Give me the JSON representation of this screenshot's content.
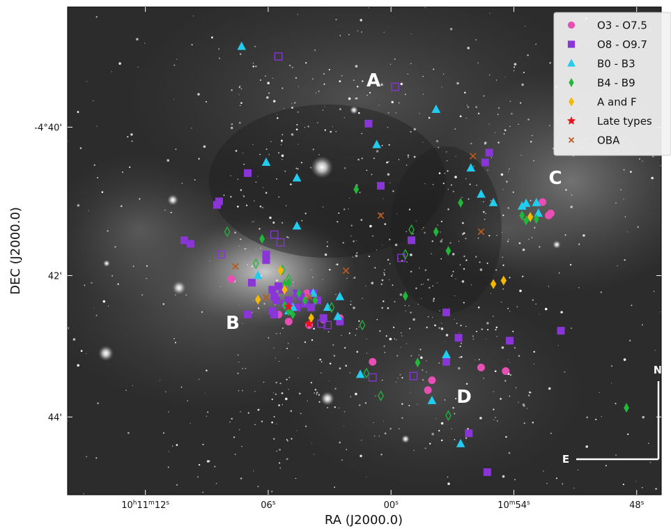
{
  "figure": {
    "xlabel": "RA (J2000.0)",
    "ylabel": "DEC (J2000.0)",
    "ra_ticks": [
      {
        "label": "10h11m12s"
      },
      {
        "label": "06s"
      },
      {
        "label": "00s"
      },
      {
        "label": "10m54s"
      },
      {
        "label": "48s"
      }
    ],
    "dec_ticks": [
      {
        "label": "-4°40'"
      },
      {
        "label": "42'"
      },
      {
        "label": "44'"
      }
    ],
    "regions": [
      "A",
      "B",
      "C",
      "D"
    ],
    "compass": {
      "north": "N",
      "east": "E"
    },
    "legend": [
      {
        "key": "o3",
        "label": "O3 - O7.5",
        "marker": "circle",
        "color": "#e84fb5"
      },
      {
        "key": "o8",
        "label": "O8 - O9.7",
        "marker": "square",
        "color": "#8a35d8"
      },
      {
        "key": "b0",
        "label": "B0 - B3",
        "marker": "triangle",
        "color": "#22ccee"
      },
      {
        "key": "b4",
        "label": "B4 - B9",
        "marker": "diamond-thin",
        "color": "#22b63a"
      },
      {
        "key": "af",
        "label": "A and F",
        "marker": "diamond",
        "color": "#f5b800"
      },
      {
        "key": "late",
        "label": "Late types",
        "marker": "star",
        "color": "#e8141c"
      },
      {
        "key": "oba",
        "label": "OBA",
        "marker": "x",
        "color": "#b85a1c"
      }
    ]
  },
  "chart_data": {
    "type": "scatter",
    "xlabel": "RA (J2000.0)",
    "ylabel": "DEC (J2000.0)",
    "x_axis": "RA seconds past 10h10m",
    "y_axis": "Dec arcminutes below -4°",
    "xlim": [
      75.8,
      46.8
    ],
    "ylim": [
      45.1,
      38.2
    ],
    "series": [
      {
        "name": "O3 - O7.5",
        "marker": "circle",
        "color": "#e84fb5",
        "filled": true,
        "points": [
          [
            67.8,
            42.05
          ],
          [
            64.0,
            42.7
          ],
          [
            65.5,
            42.55
          ],
          [
            65.0,
            42.65
          ],
          [
            64.1,
            42.25
          ],
          [
            64.2,
            42.3
          ],
          [
            63.3,
            42.62
          ],
          [
            62.5,
            42.6
          ],
          [
            60.9,
            43.22
          ],
          [
            58.2,
            43.62
          ],
          [
            58.0,
            43.48
          ],
          [
            55.6,
            43.3
          ],
          [
            54.4,
            43.35
          ],
          [
            52.6,
            40.96
          ],
          [
            52.2,
            41.12
          ],
          [
            52.3,
            41.15
          ]
        ]
      },
      {
        "name": "O8 - O9.7",
        "marker": "square",
        "color": "#8a35d8",
        "filled": true,
        "points": [
          [
            69.8,
            41.55
          ],
          [
            70.1,
            41.5
          ],
          [
            68.4,
            40.95
          ],
          [
            68.5,
            41.0
          ],
          [
            67.0,
            40.55
          ],
          [
            66.8,
            42.1
          ],
          [
            66.1,
            41.7
          ],
          [
            66.1,
            41.78
          ],
          [
            65.8,
            42.2
          ],
          [
            65.7,
            42.3
          ],
          [
            65.6,
            42.35
          ],
          [
            65.8,
            42.5
          ],
          [
            65.7,
            42.55
          ],
          [
            65.5,
            42.15
          ],
          [
            65.3,
            42.2
          ],
          [
            65.2,
            42.4
          ],
          [
            65.0,
            42.35
          ],
          [
            65.0,
            42.42
          ],
          [
            64.6,
            42.45
          ],
          [
            64.6,
            42.25
          ],
          [
            64.4,
            42.3
          ],
          [
            64.2,
            42.4
          ],
          [
            63.9,
            42.45
          ],
          [
            63.8,
            42.25
          ],
          [
            63.6,
            42.35
          ],
          [
            63.3,
            42.6
          ],
          [
            62.5,
            42.65
          ],
          [
            67.0,
            42.55
          ],
          [
            61.1,
            39.85
          ],
          [
            60.5,
            40.73
          ],
          [
            59.0,
            41.5
          ],
          [
            57.3,
            42.52
          ],
          [
            57.3,
            43.22
          ],
          [
            56.7,
            42.88
          ],
          [
            55.4,
            40.4
          ],
          [
            55.2,
            40.26
          ],
          [
            56.2,
            44.23
          ],
          [
            55.3,
            44.78
          ],
          [
            54.2,
            42.92
          ],
          [
            51.7,
            42.78
          ]
        ]
      },
      {
        "name": "B0 - B3",
        "marker": "triangle",
        "color": "#22ccee",
        "filled": true,
        "points": [
          [
            67.3,
            38.76
          ],
          [
            57.8,
            39.65
          ],
          [
            60.7,
            40.15
          ],
          [
            66.1,
            40.4
          ],
          [
            64.6,
            40.62
          ],
          [
            64.6,
            41.3
          ],
          [
            66.5,
            42.0
          ],
          [
            63.1,
            42.45
          ],
          [
            62.6,
            42.58
          ],
          [
            62.5,
            42.3
          ],
          [
            61.5,
            43.4
          ],
          [
            58.0,
            43.77
          ],
          [
            57.3,
            43.12
          ],
          [
            56.6,
            44.38
          ],
          [
            56.1,
            40.48
          ],
          [
            55.6,
            40.85
          ],
          [
            55.0,
            40.97
          ],
          [
            53.6,
            41.02
          ],
          [
            53.4,
            40.98
          ],
          [
            52.9,
            40.97
          ],
          [
            52.8,
            41.12
          ],
          [
            63.8,
            42.25
          ],
          [
            65.0,
            42.5
          ],
          [
            64.8,
            42.45
          ]
        ]
      },
      {
        "name": "B4 - B9",
        "marker": "diamond",
        "color": "#22b63a",
        "filled": true,
        "points": [
          [
            66.3,
            41.48
          ],
          [
            61.7,
            40.78
          ],
          [
            59.3,
            42.29
          ],
          [
            57.2,
            41.65
          ],
          [
            57.8,
            41.38
          ],
          [
            56.6,
            40.97
          ],
          [
            53.6,
            41.15
          ],
          [
            53.4,
            41.22
          ],
          [
            53.2,
            41.18
          ],
          [
            52.9,
            41.2
          ],
          [
            58.7,
            43.23
          ],
          [
            48.5,
            43.87
          ],
          [
            65.2,
            42.12
          ],
          [
            65.0,
            42.1
          ],
          [
            64.5,
            42.25
          ],
          [
            65.0,
            42.5
          ],
          [
            64.8,
            42.55
          ],
          [
            63.7,
            42.35
          ],
          [
            64.2,
            42.35
          ],
          [
            65.2,
            42.42
          ]
        ]
      },
      {
        "name": "B4 - B9",
        "marker": "diamond",
        "color": "#22b63a",
        "filled": false,
        "points": [
          [
            68.0,
            41.38
          ],
          [
            66.6,
            41.83
          ],
          [
            65.3,
            41.92
          ],
          [
            65.0,
            42.05
          ],
          [
            62.9,
            42.45
          ],
          [
            61.4,
            42.7
          ],
          [
            61.2,
            43.38
          ],
          [
            60.5,
            43.7
          ],
          [
            59.0,
            41.35
          ],
          [
            57.2,
            43.98
          ],
          [
            59.3,
            41.7
          ]
        ]
      },
      {
        "name": "A and F",
        "marker": "diamond",
        "color": "#f5b800",
        "filled": true,
        "points": [
          [
            65.4,
            41.93
          ],
          [
            66.5,
            42.34
          ],
          [
            65.2,
            42.2
          ],
          [
            63.9,
            42.6
          ],
          [
            55.0,
            42.12
          ],
          [
            54.5,
            42.07
          ],
          [
            53.2,
            41.17
          ]
        ]
      },
      {
        "name": "Late types",
        "marker": "star",
        "color": "#e8141c",
        "filled": true,
        "points": [
          [
            64.0,
            42.68
          ],
          [
            65.0,
            42.44
          ]
        ]
      },
      {
        "name": "OBA",
        "marker": "x",
        "color": "#b85a1c",
        "filled": true,
        "points": [
          [
            67.6,
            41.87
          ],
          [
            66.1,
            42.31
          ],
          [
            62.2,
            41.93
          ],
          [
            60.5,
            41.15
          ],
          [
            56.0,
            40.31
          ],
          [
            55.6,
            41.38
          ],
          [
            64.0,
            42.3
          ]
        ]
      },
      {
        "name": "open squares",
        "marker": "square",
        "color": "#8a35d8",
        "filled": false,
        "points": [
          [
            65.5,
            38.9
          ],
          [
            59.8,
            39.33
          ],
          [
            68.3,
            41.7
          ],
          [
            65.7,
            41.42
          ],
          [
            65.4,
            41.53
          ],
          [
            59.5,
            41.75
          ],
          [
            60.9,
            43.44
          ],
          [
            58.9,
            43.42
          ],
          [
            63.4,
            42.68
          ],
          [
            63.1,
            42.7
          ]
        ]
      }
    ]
  }
}
